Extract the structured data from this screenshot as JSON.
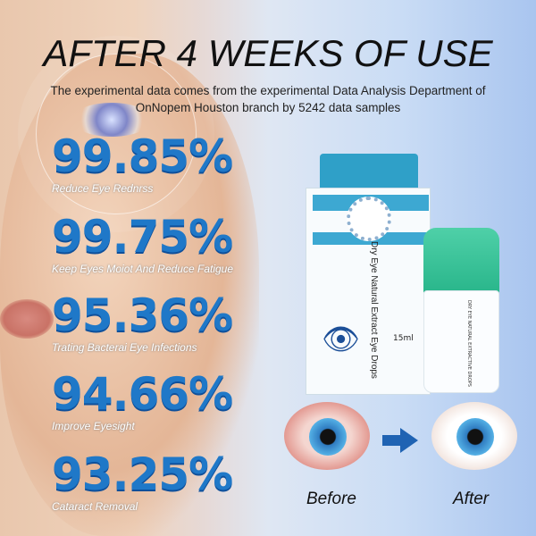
{
  "headline": "AFTER 4 WEEKS OF USE",
  "subtitle_line1": "The   experimental data comes from the experimental   Data Analysis Department of",
  "subtitle_line2": "OnNopem Houston branch by 5242 data samples",
  "stats": [
    {
      "value": "99.85%",
      "label": "Reduce Eye Rednrss"
    },
    {
      "value": "99.75%",
      "label": "Keep Eyes Moiot  And Reduce Fatigue"
    },
    {
      "value": "95.36%",
      "label": "Trating Bacterai Eye  Infections"
    },
    {
      "value": "94.66%",
      "label": "Improve Eyesight"
    },
    {
      "value": "93.25%",
      "label": "Cataract Removal"
    }
  ],
  "product": {
    "box_text": "Dry Eye Natural Extract Eye Drops",
    "volume": "15ml",
    "bottle_text": "DRY EYE NATURAL EXTRACTIVE DROPS"
  },
  "comparison": {
    "before": "Before",
    "after": "After"
  },
  "colors": {
    "stat_blue": "#1f78c8",
    "cap_green": "#2fbf90",
    "arrow_blue": "#1f63b3"
  }
}
